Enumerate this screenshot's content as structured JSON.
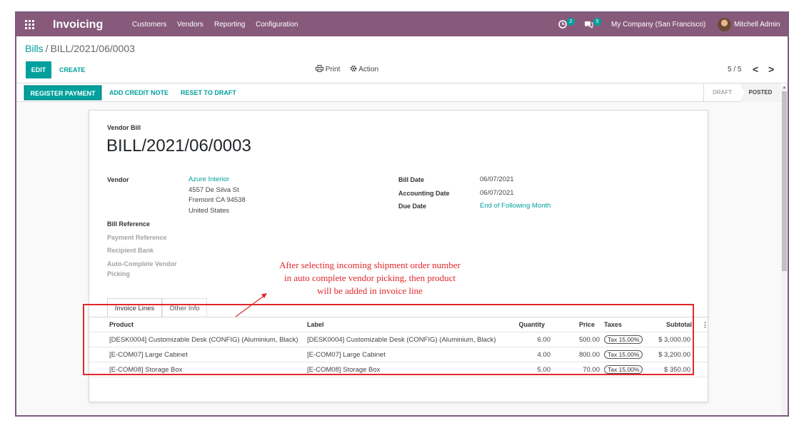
{
  "navbar": {
    "app_name": "Invoicing",
    "menu": [
      "Customers",
      "Vendors",
      "Reporting",
      "Configuration"
    ],
    "activity_count": "2",
    "message_count": "5",
    "company": "My Company (San Francisco)",
    "user": "Mitchell Admin"
  },
  "control_panel": {
    "breadcrumb_parent": "Bills",
    "breadcrumb_separator": "/",
    "breadcrumb_current": "BILL/2021/06/0003",
    "edit_label": "EDIT",
    "create_label": "CREATE",
    "print_label": "Print",
    "action_label": "Action",
    "pager": "5 / 5",
    "pager_prev": "<",
    "pager_next": ">"
  },
  "status_bar": {
    "register_payment": "REGISTER PAYMENT",
    "add_credit_note": "ADD CREDIT NOTE",
    "reset_to_draft": "RESET TO DRAFT",
    "stages": [
      "DRAFT",
      "POSTED"
    ],
    "active_stage": "POSTED"
  },
  "bill": {
    "type_label": "Vendor Bill",
    "name": "BILL/2021/06/0003",
    "vendor_label": "Vendor",
    "vendor_name": "Azure Interior",
    "vendor_address": [
      "4557 De Silva St",
      "Fremont CA 94538",
      "United States"
    ],
    "bill_reference_label": "Bill Reference",
    "payment_reference_label": "Payment Reference",
    "recipient_bank_label": "Recipient Bank",
    "auto_complete_label_1": "Auto-Complete Vendor",
    "auto_complete_label_2": "Picking",
    "bill_date_label": "Bill Date",
    "bill_date": "06/07/2021",
    "accounting_date_label": "Accounting Date",
    "accounting_date": "06/07/2021",
    "due_date_label": "Due Date",
    "due_date": "End of Following Month"
  },
  "tabs": {
    "invoice_lines": "Invoice Lines",
    "other_info": "Other Info"
  },
  "lines_table": {
    "headers": {
      "product": "Product",
      "label": "Label",
      "quantity": "Quantity",
      "price": "Price",
      "taxes": "Taxes",
      "subtotal": "Subtotal",
      "options": "⋮"
    },
    "rows": [
      {
        "product": "[DESK0004] Customizable Desk (CONFIG) (Aluminium, Black)",
        "label": "[DESK0004] Customizable Desk (CONFIG) (Aluminium, Black)",
        "quantity": "6.00",
        "price": "500.00",
        "tax": "Tax 15.00%",
        "subtotal": "$ 3,000.00"
      },
      {
        "product": "[E-COM07] Large Cabinet",
        "label": "[E-COM07] Large Cabinet",
        "quantity": "4.00",
        "price": "800.00",
        "tax": "Tax 15.00%",
        "subtotal": "$ 3,200.00"
      },
      {
        "product": "[E-COM08] Storage Box",
        "label": "[E-COM08] Storage Box",
        "quantity": "5.00",
        "price": "70.00",
        "tax": "Tax 15.00%",
        "subtotal": "$ 350.00"
      }
    ]
  },
  "annotation": {
    "lines": [
      "After selecting incoming shipment order number",
      "in auto complete vendor picking, then product",
      "will be added in invoice line"
    ],
    "color": "#e0272b"
  },
  "colors": {
    "navbar": "#875a7b",
    "accent": "#00a09d"
  },
  "icons": {
    "apps": "apps-grid-icon",
    "activity": "clock-icon",
    "messages": "chat-icon",
    "print": "printer-icon",
    "action": "gear-icon"
  }
}
